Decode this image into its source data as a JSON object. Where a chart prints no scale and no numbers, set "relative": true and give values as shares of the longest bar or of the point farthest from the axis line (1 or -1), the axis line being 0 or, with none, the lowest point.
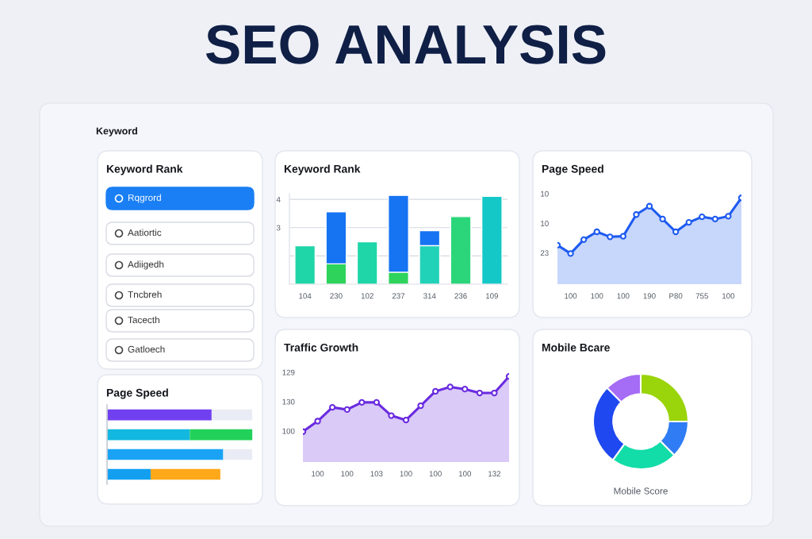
{
  "chart_data": [
    {
      "type": "other",
      "title": "SEO ANALYSIS",
      "annotations": [
        "Keyword"
      ]
    },
    {
      "type": "other",
      "title": "Keyword Rank",
      "annotations": [
        "Rqgrord",
        "Aatiortic",
        "Adiigedh",
        "Tncbreh",
        "Tacecth",
        "Gatloech"
      ]
    },
    {
      "type": "bar",
      "title": "Keyword Rank",
      "categories": [
        "104",
        "230",
        "102",
        "237",
        "314",
        "236",
        "109"
      ],
      "ylim": [
        1,
        4.2
      ],
      "yticks": [
        {
          "value": 2,
          "label": null
        },
        3,
        4
      ],
      "grid": "y",
      "legend": false,
      "series": [
        {
          "color": "#1673f2",
          "values": [
            null,
            3.56,
            null,
            4.14,
            2.89,
            null,
            null
          ]
        },
        {
          "colors": [
            "#1fd6a8",
            "#2ed35c",
            "#1fd6a8",
            "#2ed35c",
            "#22d2b8",
            "#2bd67a",
            "#14c8c8"
          ],
          "values": [
            2.36,
            1.72,
            2.5,
            1.42,
            2.36,
            3.39,
            4.11
          ]
        }
      ]
    },
    {
      "type": "area",
      "title": "Page Speed",
      "relative": true,
      "categories": [
        null,
        "100",
        null,
        "100",
        null,
        "100",
        null,
        "190",
        null,
        "P80",
        null,
        "755",
        null,
        "100",
        null
      ],
      "annotations": [
        "10",
        "10",
        "23"
      ],
      "marker": "circle",
      "line_style": "solid",
      "legend": false,
      "series": [
        {
          "color": "#1e5bf0",
          "values": [
            0.15,
            0,
            0.25,
            0.39,
            0.3,
            0.31,
            0.7,
            0.85,
            0.62,
            0.39,
            0.56,
            0.66,
            0.62,
            0.67,
            1.0
          ]
        }
      ]
    },
    {
      "type": "bar",
      "title": "Page Speed",
      "orientation": "horizontal",
      "relative": true,
      "stacked": true,
      "categories": [
        null,
        null,
        null,
        null
      ],
      "legend": false,
      "series": [
        {
          "colors": [
            "#7040f0",
            "#12b8e0",
            "#1aa3f5",
            "#139ff0"
          ],
          "values": [
            0.72,
            0.57,
            0.8,
            0.3
          ]
        },
        {
          "colors": [
            "#e9ecf4",
            "#22d15a",
            "#e9ecf4",
            "#ffa81a"
          ],
          "values": [
            0.28,
            0.43,
            0.2,
            0.48
          ]
        }
      ]
    },
    {
      "type": "area",
      "title": "Traffic Growth",
      "relative": true,
      "categories": [
        null,
        "100",
        null,
        "100",
        null,
        "103",
        null,
        "100",
        null,
        "100",
        null,
        "100",
        null,
        "132",
        null
      ],
      "annotations": [
        "129",
        "130",
        "100"
      ],
      "marker": "circle",
      "line_style": "solid",
      "legend": false,
      "series": [
        {
          "color": "#6a2be0",
          "values": [
            0,
            0.19,
            0.44,
            0.4,
            0.53,
            0.53,
            0.29,
            0.21,
            0.47,
            0.73,
            0.81,
            0.77,
            0.7,
            0.7,
            1.0
          ]
        }
      ]
    },
    {
      "type": "donut",
      "title": "Mobile Bcare",
      "annotations": [
        "Mobile Score"
      ],
      "categories": [
        null,
        null,
        null,
        null,
        null
      ],
      "values": [
        25,
        12.5,
        22.5,
        27.5,
        12.5
      ],
      "colors": [
        "#9ad40a",
        "#2f7cf5",
        "#12dca8",
        "#1f48f0",
        "#a56cf5"
      ]
    }
  ]
}
